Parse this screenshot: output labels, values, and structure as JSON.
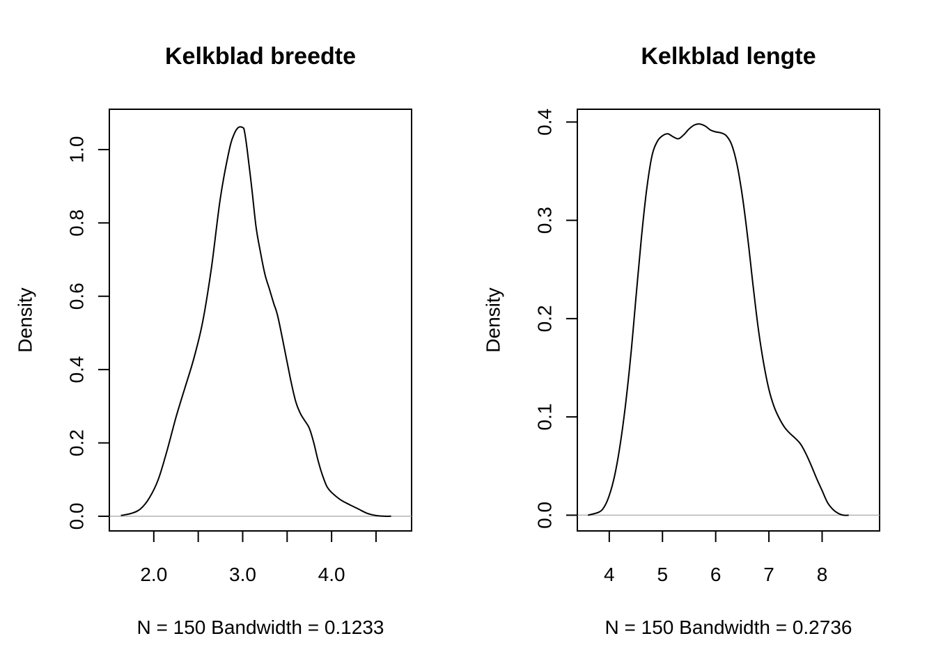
{
  "chart_data": [
    {
      "type": "line",
      "title": "Kelkblad breedte",
      "xlabel": "N = 150   Bandwidth = 0.1233",
      "ylabel": "Density",
      "xlim": [
        1.5,
        4.9
      ],
      "ylim": [
        -0.04,
        1.11
      ],
      "x_ticks": [
        2.0,
        2.5,
        3.0,
        3.5,
        4.0,
        4.5
      ],
      "x_tick_labels": [
        "2.0",
        "",
        "3.0",
        "",
        "4.0",
        ""
      ],
      "y_ticks": [
        0.0,
        0.2,
        0.4,
        0.6,
        0.8,
        1.0
      ],
      "y_tick_labels": [
        "0.0",
        "0.2",
        "0.4",
        "0.6",
        "0.8",
        "1.0"
      ],
      "baseline": 0,
      "grid": false,
      "series": [
        {
          "x": [
            1.63,
            1.75,
            1.85,
            1.95,
            2.05,
            2.15,
            2.25,
            2.35,
            2.45,
            2.55,
            2.65,
            2.75,
            2.85,
            2.9,
            2.95,
            3.0,
            3.02,
            3.05,
            3.1,
            3.15,
            3.2,
            3.25,
            3.3,
            3.35,
            3.4,
            3.5,
            3.55,
            3.6,
            3.65,
            3.7,
            3.75,
            3.8,
            3.85,
            3.9,
            3.95,
            4.0,
            4.1,
            4.2,
            4.3,
            4.4,
            4.5,
            4.6,
            4.67
          ],
          "y": [
            0.002,
            0.008,
            0.02,
            0.05,
            0.1,
            0.18,
            0.27,
            0.35,
            0.43,
            0.53,
            0.68,
            0.87,
            1.0,
            1.04,
            1.06,
            1.06,
            1.05,
            1.0,
            0.9,
            0.79,
            0.72,
            0.66,
            0.62,
            0.58,
            0.54,
            0.42,
            0.36,
            0.31,
            0.28,
            0.26,
            0.24,
            0.2,
            0.15,
            0.11,
            0.08,
            0.065,
            0.045,
            0.032,
            0.02,
            0.008,
            0.002,
            0.0,
            0.0
          ]
        }
      ]
    },
    {
      "type": "line",
      "title": "Kelkblad lengte",
      "xlabel": "N = 150   Bandwidth = 0.2736",
      "ylabel": "Density",
      "xlim": [
        3.4,
        9.08
      ],
      "ylim": [
        -0.016,
        0.413
      ],
      "x_ticks": [
        4,
        5,
        6,
        7,
        8
      ],
      "x_tick_labels": [
        "4",
        "5",
        "6",
        "7",
        "8"
      ],
      "y_ticks": [
        0.0,
        0.1,
        0.2,
        0.3,
        0.4
      ],
      "y_tick_labels": [
        "0.0",
        "0.1",
        "0.2",
        "0.3",
        "0.4"
      ],
      "baseline": 0,
      "grid": false,
      "series": [
        {
          "x": [
            3.6,
            3.8,
            3.9,
            4.0,
            4.1,
            4.2,
            4.3,
            4.4,
            4.5,
            4.6,
            4.7,
            4.8,
            4.9,
            5.0,
            5.1,
            5.2,
            5.3,
            5.4,
            5.5,
            5.6,
            5.7,
            5.8,
            5.9,
            6.0,
            6.1,
            6.2,
            6.3,
            6.4,
            6.5,
            6.6,
            6.7,
            6.8,
            6.9,
            7.0,
            7.1,
            7.2,
            7.3,
            7.4,
            7.5,
            7.6,
            7.7,
            7.8,
            7.9,
            8.0,
            8.1,
            8.2,
            8.3,
            8.4,
            8.5
          ],
          "y": [
            0.0,
            0.003,
            0.008,
            0.02,
            0.04,
            0.07,
            0.11,
            0.16,
            0.22,
            0.28,
            0.33,
            0.365,
            0.38,
            0.386,
            0.388,
            0.385,
            0.383,
            0.387,
            0.393,
            0.397,
            0.398,
            0.396,
            0.392,
            0.39,
            0.389,
            0.386,
            0.377,
            0.357,
            0.325,
            0.283,
            0.235,
            0.19,
            0.155,
            0.128,
            0.11,
            0.098,
            0.089,
            0.083,
            0.078,
            0.072,
            0.062,
            0.05,
            0.037,
            0.025,
            0.013,
            0.006,
            0.002,
            0.0,
            0.0
          ]
        }
      ]
    }
  ]
}
